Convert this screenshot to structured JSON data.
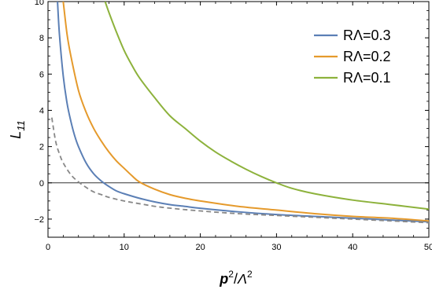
{
  "chart_data": {
    "type": "line",
    "title": "",
    "xlabel": {
      "base": "p",
      "sup1": "2",
      "slash": "/",
      "mid": "Λ",
      "sup2": "2"
    },
    "ylabel": {
      "base": "L",
      "sub": "11"
    },
    "xlim": [
      0,
      50
    ],
    "ylim": [
      -3,
      10
    ],
    "x_ticks": [
      0,
      10,
      20,
      30,
      40,
      50
    ],
    "y_ticks": [
      -2,
      0,
      2,
      4,
      6,
      8,
      10
    ],
    "grid": false,
    "reference_line_y": 0,
    "legend": {
      "position": "top-right"
    },
    "series": [
      {
        "name": "RΛ=0.3",
        "color": "#5b7fb5",
        "dashed": false,
        "x": [
          1.25,
          1.5,
          2,
          2.5,
          3,
          3.5,
          4,
          5,
          6,
          7,
          8,
          9,
          10,
          12,
          14,
          16,
          18,
          20,
          25,
          30,
          35,
          40,
          45,
          50
        ],
        "y": [
          10,
          8.2,
          5.9,
          4.4,
          3.4,
          2.6,
          2.0,
          1.1,
          0.5,
          0.1,
          -0.2,
          -0.45,
          -0.6,
          -0.85,
          -1.05,
          -1.2,
          -1.3,
          -1.4,
          -1.6,
          -1.75,
          -1.85,
          -1.95,
          -2.05,
          -2.15
        ]
      },
      {
        "name": "RΛ=0.2",
        "color": "#e59a2c",
        "dashed": false,
        "x": [
          2.0,
          2.5,
          3,
          4,
          5,
          6,
          7,
          8,
          9,
          10,
          11,
          12,
          14,
          16,
          18,
          20,
          25,
          30,
          35,
          40,
          45,
          50
        ],
        "y": [
          10,
          8.2,
          7.0,
          5.1,
          3.9,
          3.0,
          2.3,
          1.7,
          1.2,
          0.8,
          0.4,
          0.05,
          -0.35,
          -0.65,
          -0.85,
          -1.0,
          -1.3,
          -1.5,
          -1.7,
          -1.85,
          -1.95,
          -2.1
        ]
      },
      {
        "name": "RΛ=0.1",
        "color": "#8db23c",
        "dashed": false,
        "x": [
          7.5,
          8,
          9,
          10,
          11,
          12,
          14,
          16,
          18,
          20,
          22,
          24,
          26,
          28,
          30,
          32,
          35,
          40,
          45,
          50
        ],
        "y": [
          10,
          9.4,
          8.3,
          7.3,
          6.5,
          5.8,
          4.7,
          3.7,
          3.0,
          2.3,
          1.7,
          1.2,
          0.75,
          0.35,
          0.0,
          -0.3,
          -0.6,
          -0.95,
          -1.2,
          -1.45
        ]
      },
      {
        "name": "",
        "color": "#888888",
        "dashed": true,
        "x": [
          0.5,
          1,
          1.5,
          2,
          3,
          4,
          5,
          6,
          7,
          8,
          10,
          12,
          15,
          20,
          25,
          30,
          35,
          40,
          45,
          50
        ],
        "y": [
          3.6,
          2.3,
          1.6,
          1.1,
          0.45,
          0.05,
          -0.25,
          -0.5,
          -0.65,
          -0.8,
          -1.0,
          -1.15,
          -1.35,
          -1.55,
          -1.7,
          -1.8,
          -1.9,
          -2.0,
          -2.1,
          -2.2
        ]
      }
    ]
  }
}
